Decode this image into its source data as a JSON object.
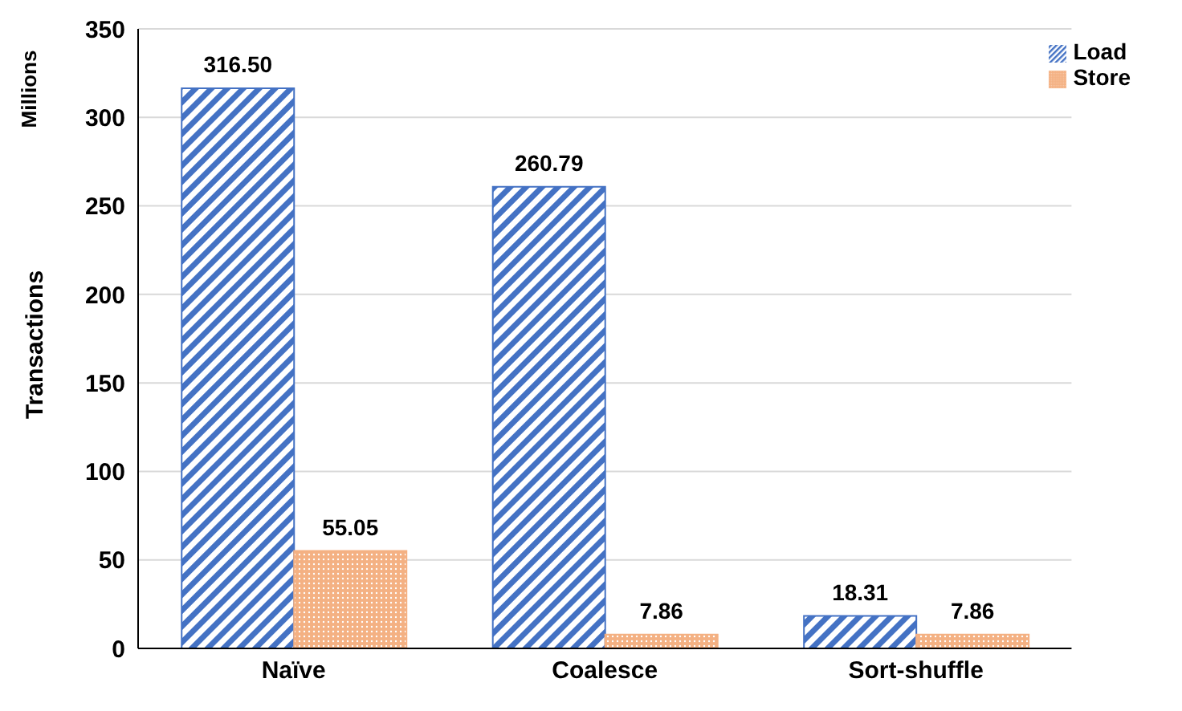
{
  "chart_data": {
    "type": "bar",
    "ylabel": "Transactions",
    "annotations": [
      "Millions"
    ],
    "categories": [
      "Naïve",
      "Coalesce",
      "Sort-shuffle"
    ],
    "series": [
      {
        "name": "Load",
        "color": "#4472c4",
        "values": [
          316.5,
          260.79,
          18.31
        ]
      },
      {
        "name": "Store",
        "color": "#f4b183",
        "values": [
          55.05,
          7.86,
          7.86
        ]
      }
    ],
    "value_labels": [
      [
        "316.50",
        "260.79",
        "18.31"
      ],
      [
        "55.05",
        "7.86",
        "7.86"
      ]
    ],
    "ylim": [
      0,
      350
    ],
    "yticks": [
      0,
      50,
      100,
      150,
      200,
      250,
      300,
      350
    ],
    "grid": "y",
    "legend": "top right"
  }
}
